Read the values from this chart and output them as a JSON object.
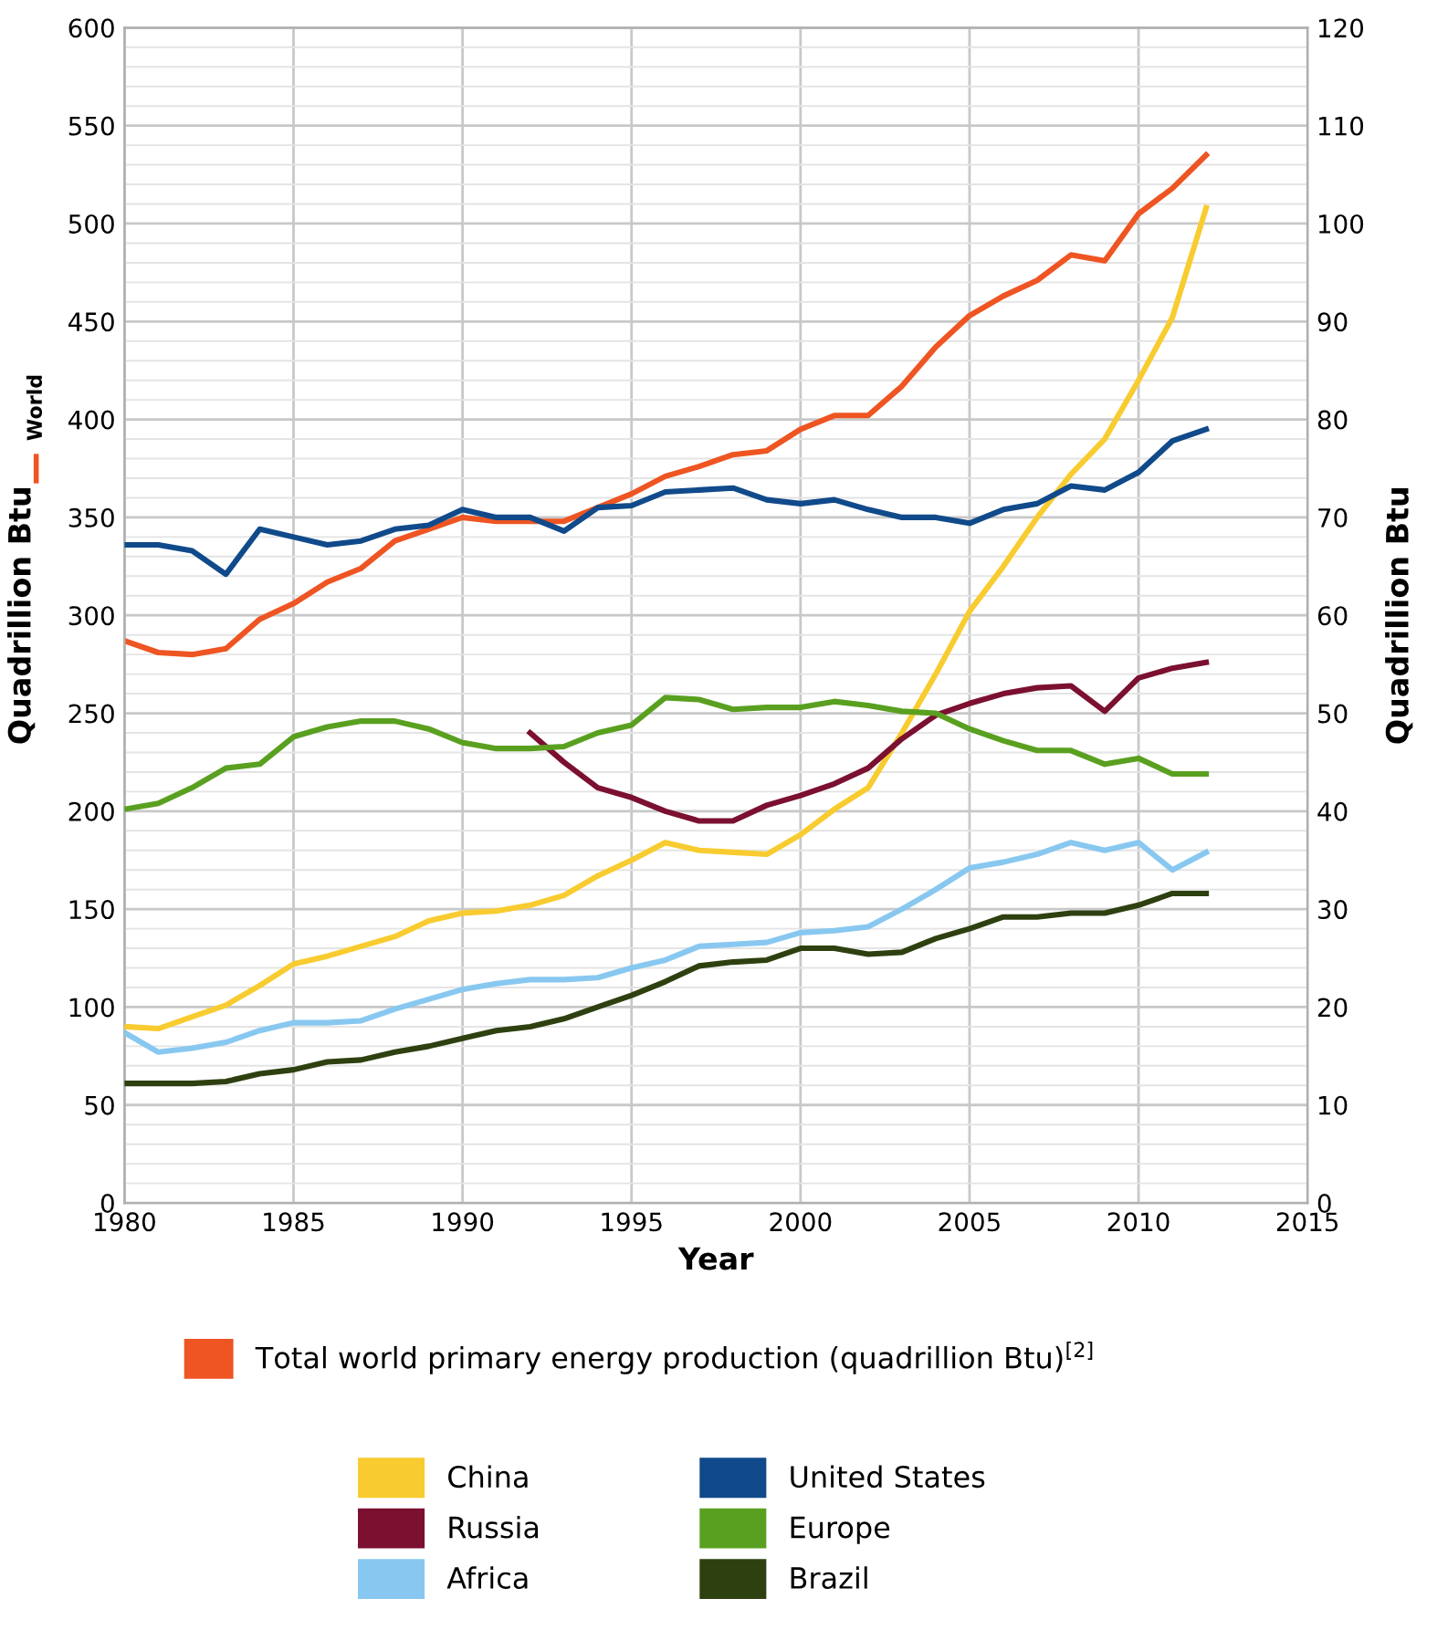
{
  "chart_data": {
    "type": "line",
    "xlabel": "Year",
    "ylabel": "Quadrillion Btu",
    "y2label": "Quadrillion Btu",
    "annotations": [
      "World"
    ],
    "x": [
      1980,
      1981,
      1982,
      1983,
      1984,
      1985,
      1986,
      1987,
      1988,
      1989,
      1990,
      1991,
      1992,
      1993,
      1994,
      1995,
      1996,
      1997,
      1998,
      1999,
      2000,
      2001,
      2002,
      2003,
      2004,
      2005,
      2006,
      2007,
      2008,
      2009,
      2010,
      2011,
      2012
    ],
    "xlim": [
      1980,
      2015
    ],
    "xticks": [
      1980,
      1985,
      1990,
      1995,
      2000,
      2005,
      2010,
      2015
    ],
    "ylim": [
      0,
      600
    ],
    "yticks": [
      0,
      50,
      100,
      150,
      200,
      250,
      300,
      350,
      400,
      450,
      500,
      550,
      600
    ],
    "y2lim": [
      0,
      120
    ],
    "y2ticks": [
      0,
      10,
      20,
      30,
      40,
      50,
      60,
      70,
      80,
      90,
      100,
      110,
      120
    ],
    "grid": true,
    "legend": "bottom",
    "marker": "none",
    "line_style": "solid",
    "series": [
      {
        "name": "Total world primary energy production (quadrillion Btu)$^{[2]}$",
        "color": "#ee5522",
        "values": [
          287,
          281,
          280,
          283,
          298,
          306,
          317,
          324,
          338,
          344,
          350,
          348,
          348,
          348,
          355,
          362,
          371,
          376,
          382,
          384,
          395,
          402,
          402,
          417,
          437,
          453,
          463,
          471,
          484,
          481,
          505,
          518,
          535
        ]
      },
      {
        "name": "China",
        "color": "#f8cc30",
        "axis": "y2",
        "values": [
          18,
          17.8,
          19,
          20.2,
          22.2,
          24.4,
          25.2,
          26.2,
          27.2,
          28.8,
          29.6,
          29.8,
          30.4,
          31.4,
          33.4,
          35,
          36.8,
          36,
          35.8,
          35.6,
          37.6,
          40.2,
          42.4,
          48,
          54,
          60.4,
          65,
          70,
          74.4,
          78,
          84,
          90.4,
          101.6
        ]
      },
      {
        "name": "Russia",
        "color": "#7b1030",
        "axis": "y2",
        "values": [
          null,
          null,
          null,
          null,
          null,
          null,
          null,
          null,
          null,
          null,
          null,
          null,
          48,
          45,
          42.4,
          41.4,
          40,
          39,
          39,
          40.6,
          41.6,
          42.8,
          44.4,
          47.4,
          49.8,
          51,
          52,
          52.6,
          52.8,
          50.2,
          53.6,
          54.6,
          55.2
        ]
      },
      {
        "name": "Africa",
        "color": "#88c8f0",
        "axis": "y2",
        "values": [
          17.4,
          15.4,
          15.8,
          16.4,
          17.6,
          18.4,
          18.4,
          18.6,
          19.8,
          20.8,
          21.8,
          22.4,
          22.8,
          22.8,
          23,
          24,
          24.8,
          26.2,
          26.4,
          26.6,
          27.6,
          27.8,
          28.2,
          30,
          32,
          34.2,
          34.8,
          35.6,
          36.8,
          36,
          36.8,
          34,
          35.8
        ]
      },
      {
        "name": "United States",
        "color": "#104a8a",
        "axis": "y2",
        "values": [
          67.2,
          67.2,
          66.6,
          64.2,
          68.8,
          68,
          67.2,
          67.6,
          68.8,
          69.2,
          70.8,
          70,
          70,
          68.6,
          71,
          71.2,
          72.6,
          72.8,
          73,
          71.8,
          71.4,
          71.8,
          70.8,
          70,
          70,
          69.4,
          70.8,
          71.4,
          73.2,
          72.8,
          74.6,
          77.8,
          79
        ]
      },
      {
        "name": "Europe",
        "color": "#5aa020",
        "axis": "y2",
        "values": [
          40.2,
          40.8,
          42.4,
          44.4,
          44.8,
          47.6,
          48.6,
          49.2,
          49.2,
          48.4,
          47,
          46.4,
          46.4,
          46.6,
          48,
          48.8,
          51.6,
          51.4,
          50.4,
          50.6,
          50.6,
          51.2,
          50.8,
          50.2,
          50,
          48.4,
          47.2,
          46.2,
          46.2,
          44.8,
          45.4,
          43.8,
          43.8
        ]
      },
      {
        "name": "Brazil",
        "color": "#2e4010",
        "axis": "y2",
        "values": [
          12.2,
          12.2,
          12.2,
          12.4,
          13.2,
          13.6,
          14.4,
          14.6,
          15.4,
          16,
          16.8,
          17.6,
          18,
          18.8,
          20,
          21.2,
          22.6,
          24.2,
          24.6,
          24.8,
          26,
          26,
          25.4,
          25.6,
          27,
          28,
          29.2,
          29.2,
          29.6,
          29.6,
          30.4,
          31.6,
          31.6
        ]
      }
    ]
  }
}
